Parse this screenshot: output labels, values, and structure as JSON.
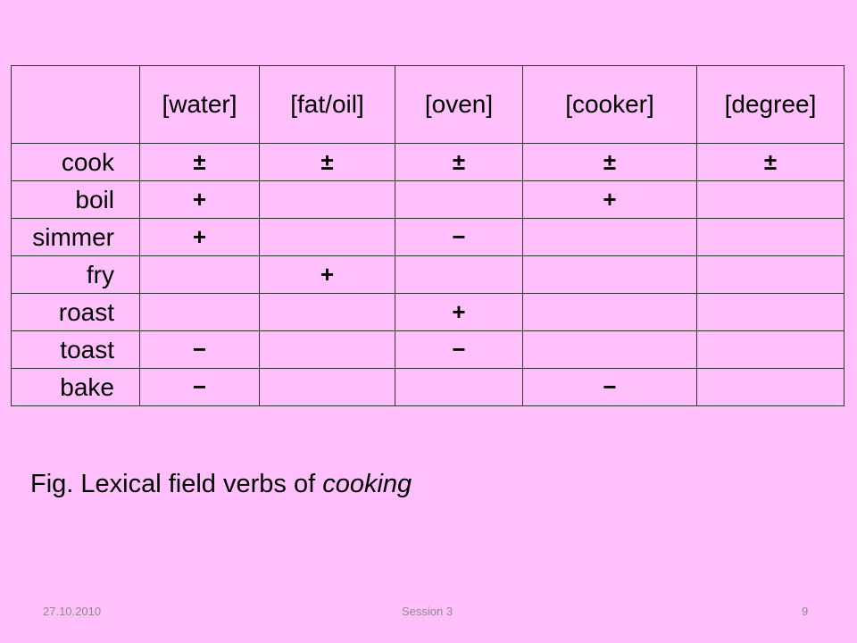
{
  "table": {
    "headers": [
      "",
      "[water]",
      "[fat/oil]",
      "[oven]",
      "[cooker]",
      "[degree]"
    ],
    "rows": [
      {
        "label": "cook",
        "cells": [
          "±",
          "±",
          "±",
          "±",
          "±"
        ]
      },
      {
        "label": "boil",
        "cells": [
          "+",
          "",
          "",
          "+",
          ""
        ]
      },
      {
        "label": "simmer",
        "cells": [
          "+",
          "",
          "−",
          "",
          ""
        ]
      },
      {
        "label": "fry",
        "cells": [
          "",
          "+",
          "",
          "",
          ""
        ]
      },
      {
        "label": "roast",
        "cells": [
          "",
          "",
          "+",
          "",
          ""
        ]
      },
      {
        "label": "toast",
        "cells": [
          "−",
          "",
          "−",
          "",
          ""
        ]
      },
      {
        "label": "bake",
        "cells": [
          "−",
          "",
          "",
          "−",
          ""
        ]
      }
    ]
  },
  "caption": {
    "prefix": "Fig. Lexical field verbs of ",
    "emphasis": "cooking"
  },
  "footer": {
    "date": "27.10.2010",
    "session": "Session 3",
    "page": "9"
  },
  "colors": {
    "background": "#ffc0fc",
    "grid": "#333333",
    "footer_text": "#8c8c8c"
  }
}
